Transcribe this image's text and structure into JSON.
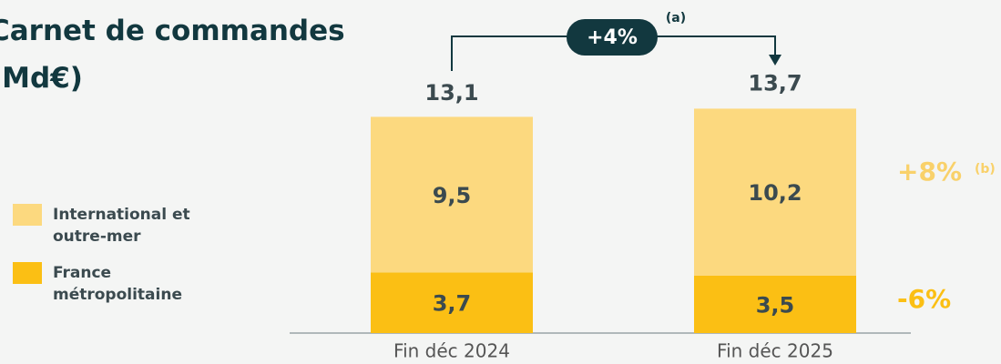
{
  "chart_data": {
    "type": "stacked_bar",
    "title": "Carnet de commandes (Md€)",
    "categories": [
      "Fin déc 2024",
      "Fin déc 2025"
    ],
    "series": [
      {
        "name": "France métropolitaine",
        "color": "#fbbf14",
        "values": [
          3.7,
          3.5
        ],
        "value_labels": [
          "3,7",
          "3,5"
        ]
      },
      {
        "name": "International et outre-mer",
        "color": "#fcd97f",
        "values": [
          9.5,
          10.2
        ],
        "value_labels": [
          "9,5",
          "10,2"
        ]
      }
    ],
    "totals": [
      13.1,
      13.7
    ],
    "total_labels": [
      "13,1",
      "13,7"
    ],
    "ylim": [
      0,
      20
    ],
    "annotations": [
      {
        "text": "+4%",
        "note": "(a)"
      },
      {
        "text": "+8%",
        "note": "(b)"
      },
      {
        "text": "-6%"
      }
    ]
  }
}
